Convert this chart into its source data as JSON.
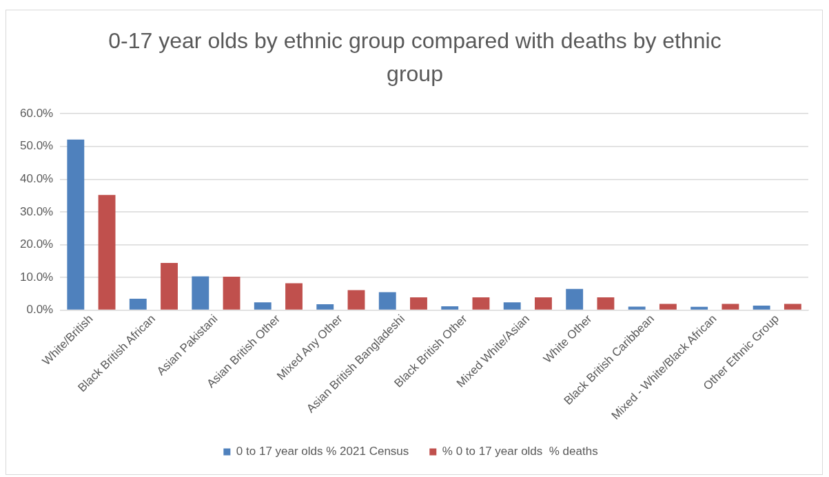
{
  "chart_data": {
    "type": "bar",
    "title": "0-17 year olds by ethnic group compared with deaths by ethnic group",
    "categories": [
      "White/British",
      "Black British African",
      "Asian Pakistani",
      "Asian British Other",
      "Mixed Any Other",
      "Asian British Bangladeshi",
      "Black British Other",
      "Mixed White/Asian",
      "White Other",
      "Black British Caribbean",
      "Mixed - White/Black African",
      "Other Ethnic Group"
    ],
    "series": [
      {
        "name": "0 to 17 year olds % 2021 Census",
        "color": "#4f81bd",
        "values": [
          52.1,
          3.5,
          10.3,
          2.4,
          1.8,
          5.5,
          1.2,
          2.4,
          6.5,
          1.1,
          1.0,
          1.4
        ]
      },
      {
        "name": "% 0 to 17 year olds  % deaths",
        "color": "#c0504d",
        "values": [
          35.2,
          14.4,
          10.2,
          8.2,
          6.1,
          3.9,
          3.9,
          3.9,
          3.9,
          1.9,
          1.9,
          1.9
        ]
      }
    ],
    "ylim": [
      0,
      60
    ],
    "yticks": [
      {
        "value": 0,
        "label": "0.0%"
      },
      {
        "value": 10,
        "label": "10.0%"
      },
      {
        "value": 20,
        "label": "20.0%"
      },
      {
        "value": 30,
        "label": "30.0%"
      },
      {
        "value": 40,
        "label": "40.0%"
      },
      {
        "value": 50,
        "label": "50.0%"
      },
      {
        "value": 60,
        "label": "60.0%"
      }
    ],
    "grid": "y",
    "legend": "bottom"
  }
}
